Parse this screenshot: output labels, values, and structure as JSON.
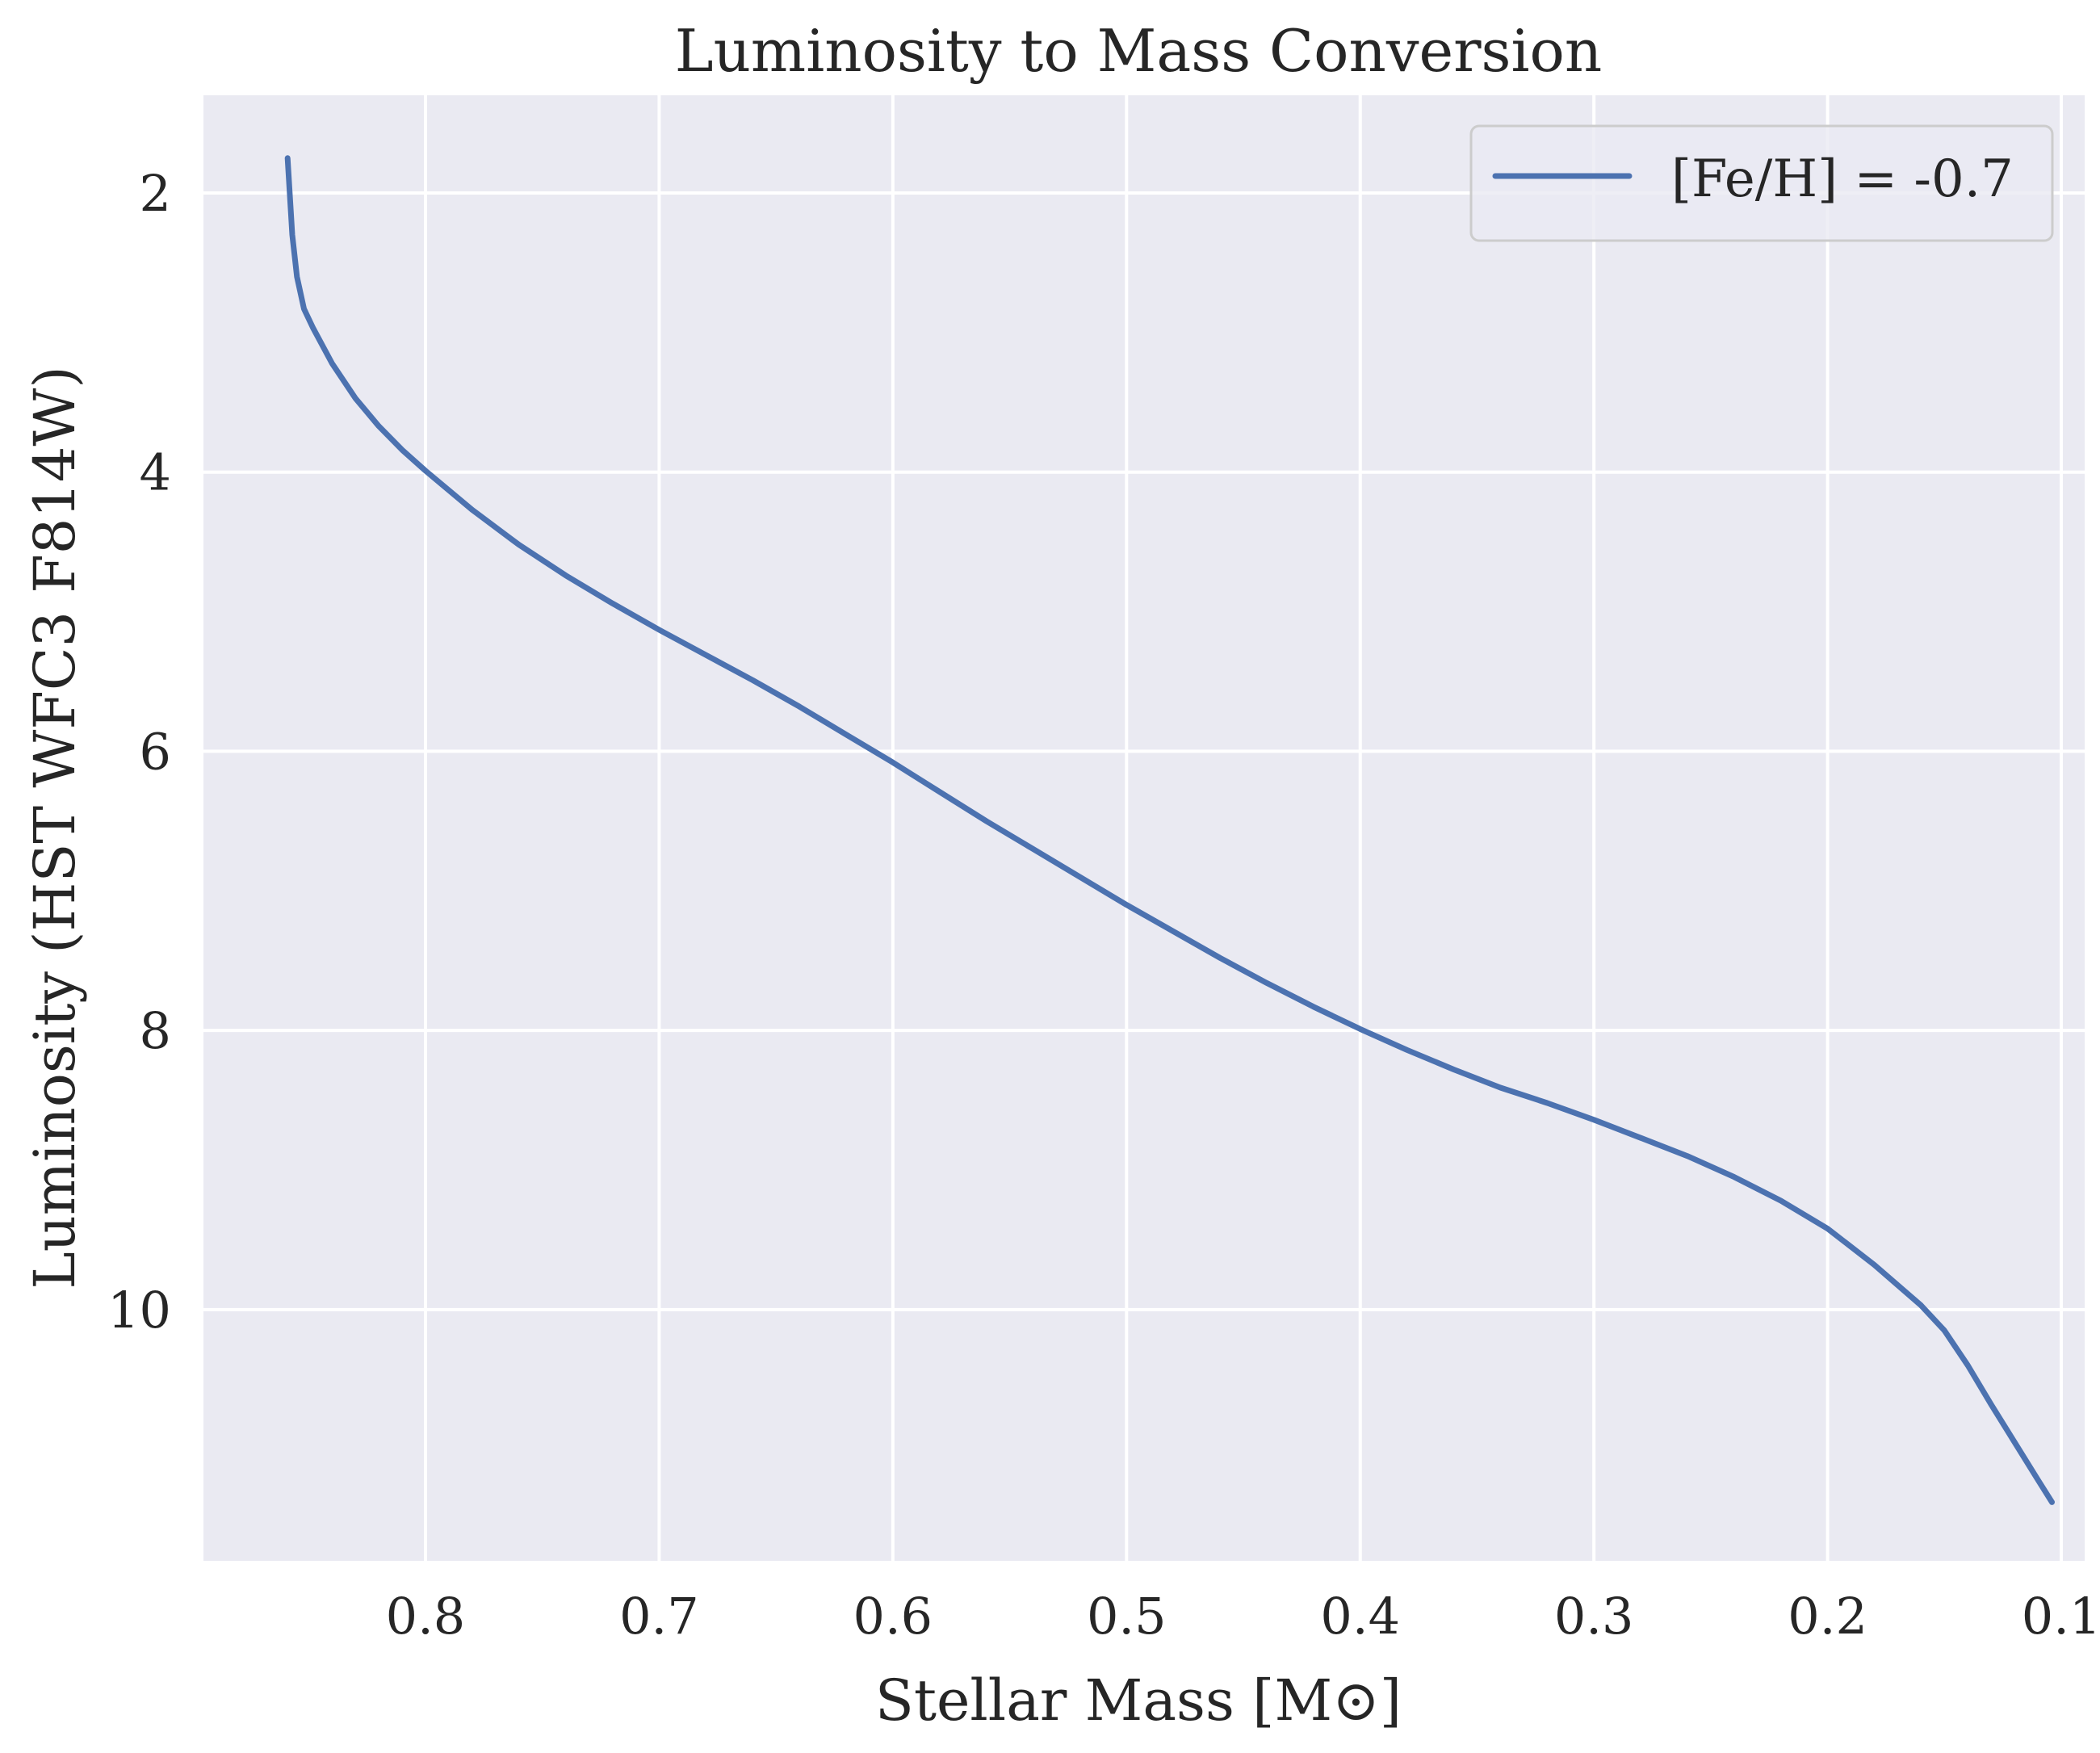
{
  "chart_data": {
    "type": "line",
    "title": "Luminosity to Mass Conversion",
    "xlabel": "Stellar Mass [M⊙]",
    "ylabel": "Luminosity (HST WFC3 F814W)",
    "xlim": [
      0.895,
      0.09
    ],
    "ylim": [
      11.8,
      1.3
    ],
    "x_inverted": true,
    "y_inverted": true,
    "grid": true,
    "legend_position": "top-right",
    "xticks": [
      0.8,
      0.7,
      0.6,
      0.5,
      0.4,
      0.3,
      0.2,
      0.1
    ],
    "xtick_labels": [
      "0.8",
      "0.7",
      "0.6",
      "0.5",
      "0.4",
      "0.3",
      "0.2",
      "0.1"
    ],
    "yticks": [
      2,
      4,
      6,
      8,
      10
    ],
    "ytick_labels": [
      "2",
      "4",
      "6",
      "8",
      "10"
    ],
    "colors": {
      "background": "#eaeaf2",
      "grid": "#ffffff",
      "series": "#4c72b0",
      "text": "#262626"
    },
    "series": [
      {
        "name": "[Fe/H] = -0.7",
        "x": [
          0.859,
          0.857,
          0.855,
          0.852,
          0.848,
          0.84,
          0.83,
          0.82,
          0.81,
          0.8,
          0.78,
          0.76,
          0.74,
          0.72,
          0.7,
          0.68,
          0.66,
          0.64,
          0.62,
          0.6,
          0.58,
          0.56,
          0.54,
          0.52,
          0.5,
          0.48,
          0.46,
          0.44,
          0.42,
          0.4,
          0.38,
          0.36,
          0.34,
          0.32,
          0.3,
          0.28,
          0.26,
          0.24,
          0.22,
          0.2,
          0.18,
          0.16,
          0.15,
          0.14,
          0.13,
          0.12,
          0.11,
          0.104
        ],
        "y": [
          1.75,
          2.3,
          2.6,
          2.83,
          2.97,
          3.22,
          3.47,
          3.67,
          3.84,
          3.99,
          4.27,
          4.52,
          4.74,
          4.94,
          5.13,
          5.31,
          5.49,
          5.68,
          5.88,
          6.08,
          6.29,
          6.5,
          6.7,
          6.9,
          7.1,
          7.29,
          7.48,
          7.66,
          7.83,
          7.99,
          8.14,
          8.28,
          8.41,
          8.52,
          8.64,
          8.77,
          8.9,
          9.05,
          9.22,
          9.42,
          9.68,
          9.97,
          10.15,
          10.4,
          10.68,
          10.95,
          11.22,
          11.38
        ]
      }
    ]
  }
}
